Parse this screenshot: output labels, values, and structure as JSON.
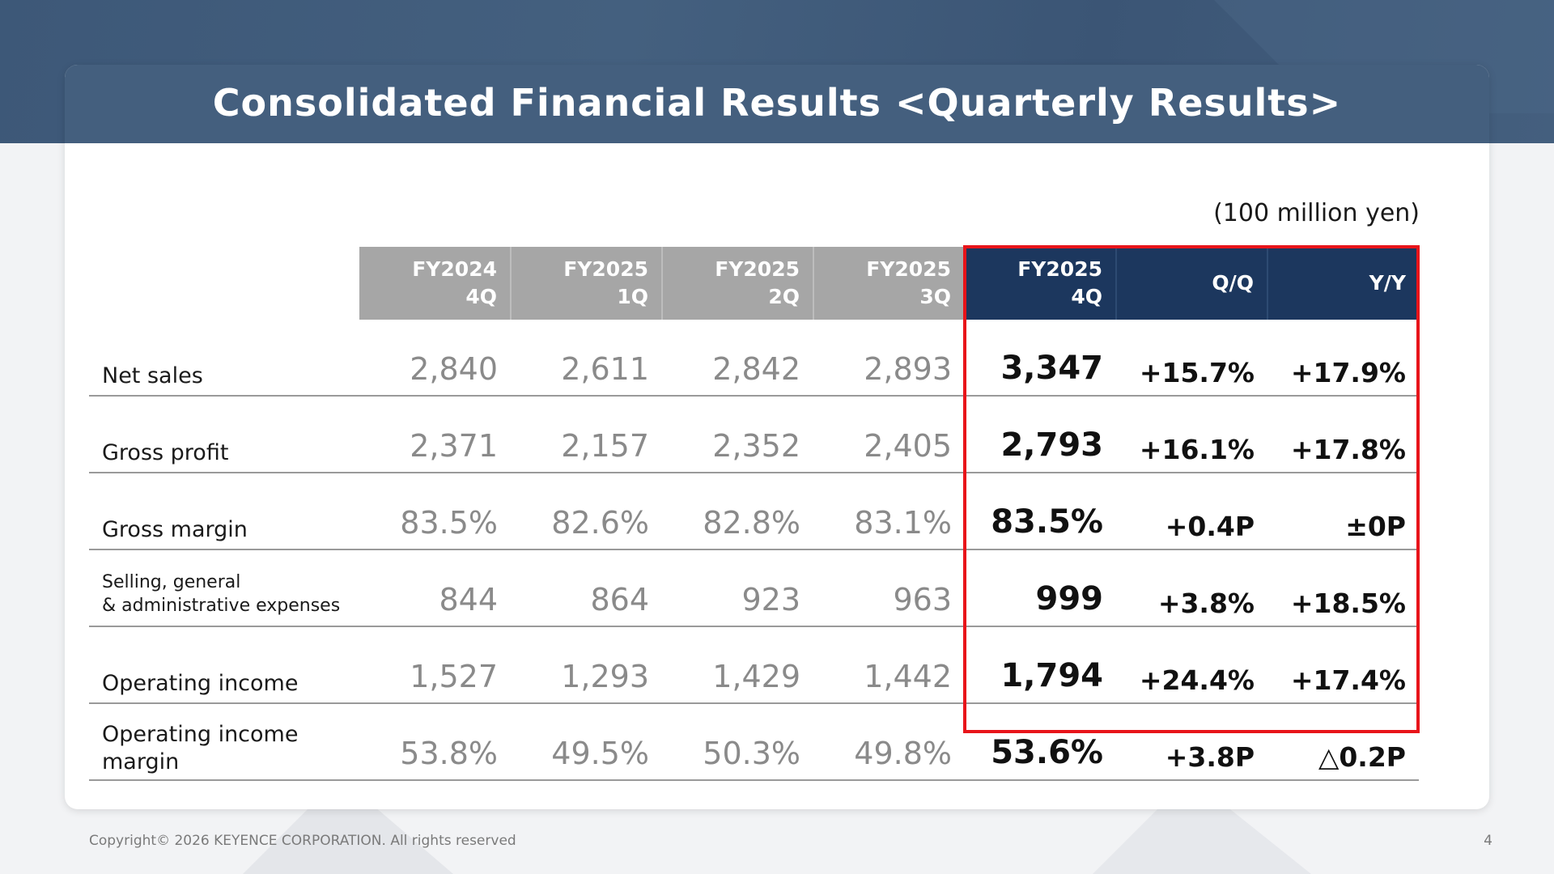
{
  "title": "Consolidated Financial Results <Quarterly Results>",
  "unit": "(100 million yen)",
  "columns": [
    {
      "line1": "FY2024",
      "line2": "4Q"
    },
    {
      "line1": "FY2025",
      "line2": "1Q"
    },
    {
      "line1": "FY2025",
      "line2": "2Q"
    },
    {
      "line1": "FY2025",
      "line2": "3Q"
    },
    {
      "line1": "FY2025",
      "line2": "4Q"
    },
    {
      "line1": "Q/Q",
      "line2": ""
    },
    {
      "line1": "Y/Y",
      "line2": ""
    }
  ],
  "rows": [
    {
      "label1": "Net sales",
      "label2": "",
      "values": [
        "2,840",
        "2,611",
        "2,842",
        "2,893"
      ],
      "current": "3,347",
      "qq": "+15.7%",
      "yy": "+17.9%"
    },
    {
      "label1": "Gross profit",
      "label2": "",
      "values": [
        "2,371",
        "2,157",
        "2,352",
        "2,405"
      ],
      "current": "2,793",
      "qq": "+16.1%",
      "yy": "+17.8%"
    },
    {
      "label1": "Gross margin",
      "label2": "",
      "values": [
        "83.5%",
        "82.6%",
        "82.8%",
        "83.1%"
      ],
      "current": "83.5%",
      "qq": "+0.4P",
      "yy": "±0P"
    },
    {
      "label1": "Selling, general",
      "label2": "& administrative expenses",
      "values": [
        "844",
        "864",
        "923",
        "963"
      ],
      "current": "999",
      "qq": "+3.8%",
      "yy": "+18.5%"
    },
    {
      "label1": "Operating income",
      "label2": "",
      "values": [
        "1,527",
        "1,293",
        "1,429",
        "1,442"
      ],
      "current": "1,794",
      "qq": "+24.4%",
      "yy": "+17.4%"
    },
    {
      "label1": "Operating income",
      "label2": "margin",
      "values": [
        "53.8%",
        "49.5%",
        "50.3%",
        "49.8%"
      ],
      "current": "53.6%",
      "qq": "+3.8P",
      "yy": "△0.2P"
    }
  ],
  "footer": {
    "copyright": "Copyright© 2026 KEYENCE CORPORATION. All rights reserved",
    "page_number": "4"
  },
  "colors": {
    "header_band": "#445f7e",
    "past_header": "#a6a6a6",
    "current_header": "#1c375e",
    "highlight_frame": "#e8141a"
  }
}
